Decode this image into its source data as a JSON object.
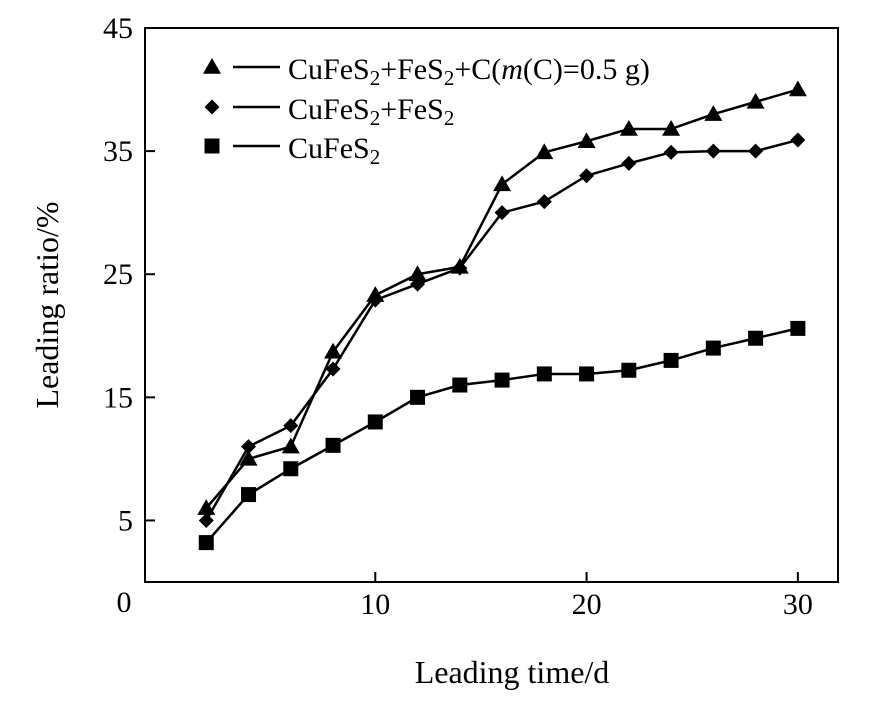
{
  "chart_data": {
    "type": "line",
    "title": "",
    "xlabel": "Leading time/d",
    "ylabel": "Leading ratio/%",
    "xlim": [
      -0.9,
      31.9
    ],
    "ylim": [
      0,
      45
    ],
    "x_ticks": [
      0,
      10,
      20,
      30
    ],
    "x_tick_labels": [
      "0",
      "10",
      "20",
      "30"
    ],
    "y_ticks": [
      5,
      15,
      25,
      35,
      45
    ],
    "y_tick_labels": [
      "5",
      "15",
      "25",
      "35",
      "45"
    ],
    "y_zero_label": "0",
    "grid": false,
    "legend_position": "top-left",
    "x": [
      2,
      4,
      6,
      8,
      10,
      12,
      14,
      16,
      18,
      20,
      22,
      24,
      26,
      28,
      30
    ],
    "series": [
      {
        "name": "CuFeS2+FeS2+C(m(C)=0.5 g)",
        "legend": {
          "parts": [
            {
              "t": "CuFeS"
            },
            {
              "t": "2",
              "sub": true
            },
            {
              "t": "+FeS"
            },
            {
              "t": "2",
              "sub": true
            },
            {
              "t": "+C("
            },
            {
              "t": "m",
              "italic": true
            },
            {
              "t": "(C)=0.5 g)"
            }
          ]
        },
        "marker": "triangle",
        "values": [
          6.0,
          10.0,
          11.0,
          18.7,
          23.3,
          25.0,
          25.6,
          32.3,
          34.9,
          35.8,
          36.8,
          36.8,
          38.0,
          39.0,
          40.0
        ]
      },
      {
        "name": "CuFeS2+FeS2",
        "legend": {
          "parts": [
            {
              "t": "CuFeS"
            },
            {
              "t": "2",
              "sub": true
            },
            {
              "t": "+FeS"
            },
            {
              "t": "2",
              "sub": true
            }
          ]
        },
        "marker": "diamond",
        "values": [
          5.0,
          11.0,
          12.7,
          17.3,
          22.9,
          24.2,
          25.5,
          30.0,
          30.9,
          33.0,
          34.0,
          34.9,
          35.0,
          35.0,
          35.9
        ]
      },
      {
        "name": "CuFeS2",
        "legend": {
          "parts": [
            {
              "t": "CuFeS"
            },
            {
              "t": "2",
              "sub": true
            }
          ]
        },
        "marker": "square",
        "values": [
          3.2,
          7.1,
          9.2,
          11.1,
          13.0,
          15.0,
          16.0,
          16.4,
          16.9,
          16.9,
          17.2,
          18.0,
          19.0,
          19.8,
          20.6
        ]
      }
    ]
  }
}
